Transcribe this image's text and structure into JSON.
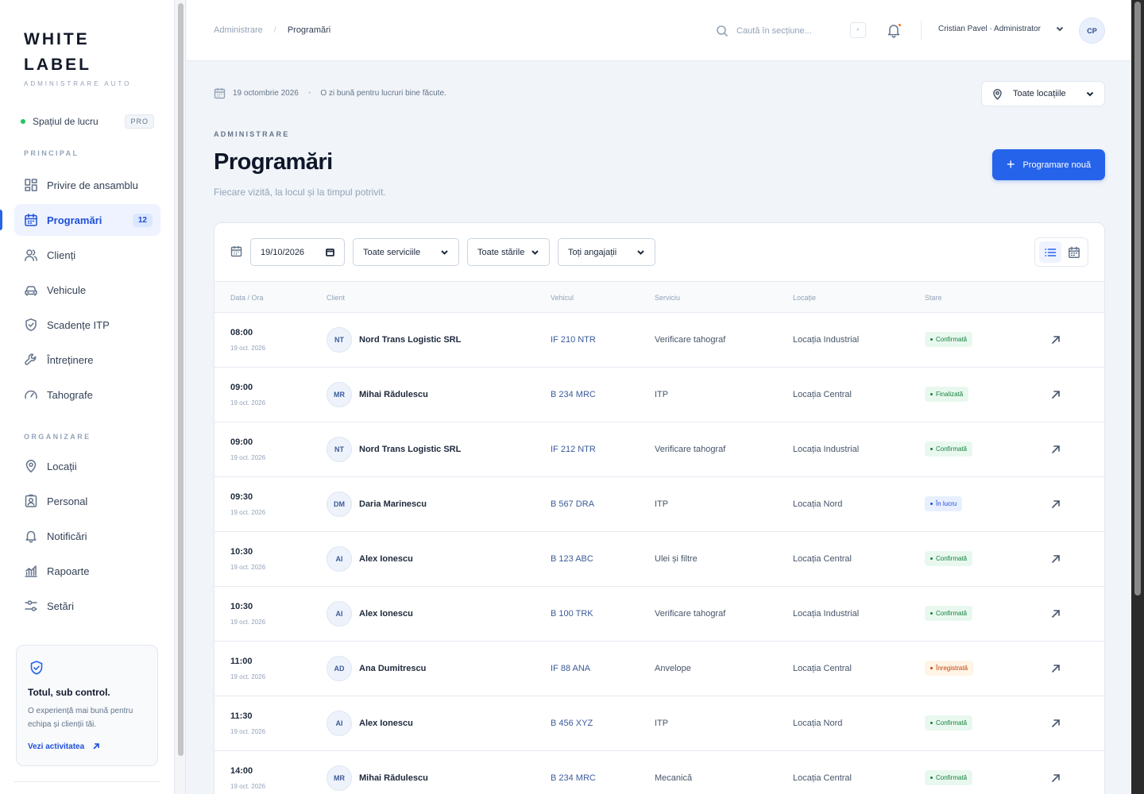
{
  "brand": {
    "line1": "WHITE",
    "line2": "LABEL",
    "subtitle": "ADMINISTRARE AUTO"
  },
  "workspace": {
    "label": "Spațiul de lucru",
    "badge": "PRO"
  },
  "sections": {
    "principal": "PRINCIPAL",
    "organizare": "ORGANIZARE"
  },
  "nav": {
    "overview": "Privire de ansamblu",
    "appointments": "Programări",
    "appointments_count": "12",
    "clients": "Clienți",
    "vehicles": "Vehicule",
    "itp": "Scadențe ITP",
    "maintenance": "Întreținere",
    "tachographs": "Tahografe",
    "locations": "Locații",
    "staff": "Personal",
    "notifications": "Notificări",
    "reports": "Rapoarte",
    "settings": "Setări"
  },
  "promo": {
    "title": "Totul, sub control.",
    "text": "O experiență mai bună pentru echipa și clienții tăi.",
    "link": "Vezi activitatea"
  },
  "topbar": {
    "breadcrumb_root": "Administrare",
    "breadcrumb_sep": "/",
    "breadcrumb_current": "Programări",
    "search_placeholder": "Caută în secțiune...",
    "search_shortcut": "⌕",
    "user": "Cristian Pavel · Administrator",
    "avatar": "CP"
  },
  "header": {
    "date": "19 octombrie 2026",
    "dot": "•",
    "greeting": "O zi bună pentru lucruri bine făcute.",
    "location_filter": "Toate locațiile",
    "eyebrow": "ADMINISTRARE",
    "title": "Programări",
    "subtitle": "Fiecare vizită, la locul și la timpul potrivit.",
    "new_button": "Programare nouă",
    "new_button_icon": "+"
  },
  "filters": {
    "date_value": "19/10/2026",
    "services": "Toate serviciile",
    "statuses": "Toate stările",
    "employees": "Toți angajații"
  },
  "table": {
    "headers": [
      "Data / Ora",
      "Client",
      "Vehicul",
      "Serviciu",
      "Locație",
      "Stare"
    ],
    "rows": [
      {
        "time": "08:00",
        "date": "19 oct. 2026",
        "initials": "NT",
        "client": "Nord Trans Logistic SRL",
        "vehicle": "IF 210 NTR",
        "service": "Verificare tahograf",
        "location": "Locația Industrial",
        "status": "Confirmată",
        "status_kind": "confirmed"
      },
      {
        "time": "09:00",
        "date": "19 oct. 2026",
        "initials": "MR",
        "client": "Mihai Rădulescu",
        "vehicle": "B 234 MRC",
        "service": "ITP",
        "location": "Locația Central",
        "status": "Finalizată",
        "status_kind": "done"
      },
      {
        "time": "09:00",
        "date": "19 oct. 2026",
        "initials": "NT",
        "client": "Nord Trans Logistic SRL",
        "vehicle": "IF 212 NTR",
        "service": "Verificare tahograf",
        "location": "Locația Industrial",
        "status": "Confirmată",
        "status_kind": "confirmed"
      },
      {
        "time": "09:30",
        "date": "19 oct. 2026",
        "initials": "DM",
        "client": "Daria Marinescu",
        "vehicle": "B 567 DRA",
        "service": "ITP",
        "location": "Locația Nord",
        "status": "În lucru",
        "status_kind": "progress"
      },
      {
        "time": "10:30",
        "date": "19 oct. 2026",
        "initials": "AI",
        "client": "Alex Ionescu",
        "vehicle": "B 123 ABC",
        "service": "Ulei și filtre",
        "location": "Locația Central",
        "status": "Confirmată",
        "status_kind": "confirmed"
      },
      {
        "time": "10:30",
        "date": "19 oct. 2026",
        "initials": "AI",
        "client": "Alex Ionescu",
        "vehicle": "B 100 TRK",
        "service": "Verificare tahograf",
        "location": "Locația Industrial",
        "status": "Confirmată",
        "status_kind": "confirmed"
      },
      {
        "time": "11:00",
        "date": "19 oct. 2026",
        "initials": "AD",
        "client": "Ana Dumitrescu",
        "vehicle": "IF 88 ANA",
        "service": "Anvelope",
        "location": "Locația Central",
        "status": "Înregistrată",
        "status_kind": "registered"
      },
      {
        "time": "11:30",
        "date": "19 oct. 2026",
        "initials": "AI",
        "client": "Alex Ionescu",
        "vehicle": "B 456 XYZ",
        "service": "ITP",
        "location": "Locația Nord",
        "status": "Confirmată",
        "status_kind": "confirmed"
      },
      {
        "time": "14:00",
        "date": "19 oct. 2026",
        "initials": "MR",
        "client": "Mihai Rădulescu",
        "vehicle": "B 234 MRC",
        "service": "Mecanică",
        "location": "Locația Central",
        "status": "Confirmată",
        "status_kind": "confirmed"
      }
    ]
  },
  "status_colors": {
    "confirmed": {
      "bg": "#e9f8ef",
      "fg": "#15803d"
    },
    "done": {
      "bg": "#e9f8ef",
      "fg": "#15803d"
    },
    "progress": {
      "bg": "#e8efff",
      "fg": "#1d4ed8"
    },
    "registered": {
      "bg": "#fff4e5",
      "fg": "#c2410c"
    }
  },
  "accent": "#2563eb"
}
